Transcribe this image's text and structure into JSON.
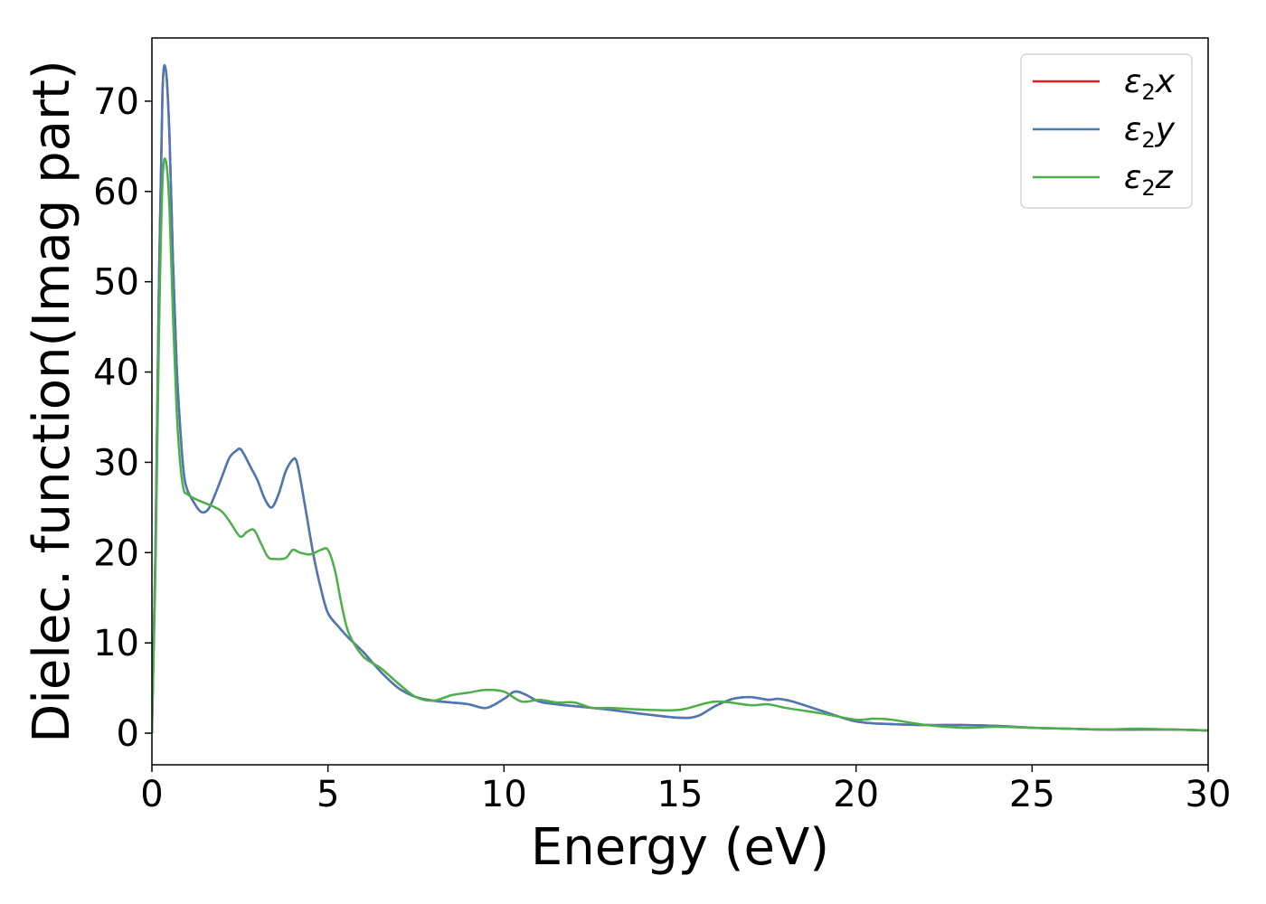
{
  "chart_data": {
    "type": "line",
    "xlabel": "Energy (eV)",
    "ylabel": "Dielec. function(Imag part)",
    "xlim": [
      0,
      30
    ],
    "ylim": [
      -3.5,
      77
    ],
    "xticks": [
      0,
      5,
      10,
      15,
      20,
      25,
      30
    ],
    "yticks": [
      0,
      10,
      20,
      30,
      40,
      50,
      60,
      70
    ],
    "grid": false,
    "legend": {
      "placement": "top-right"
    },
    "series": [
      {
        "name": "ε2x",
        "legend_base": "ε",
        "legend_sub": "2",
        "legend_var": "x",
        "color": "#e41a1c",
        "x": [
          0,
          0.1,
          0.2,
          0.3,
          0.4,
          0.5,
          0.6,
          0.7,
          0.8,
          0.9,
          1.0,
          1.2,
          1.4,
          1.6,
          1.8,
          2.0,
          2.2,
          2.4,
          2.5,
          2.6,
          2.8,
          3.0,
          3.2,
          3.4,
          3.6,
          3.8,
          4.0,
          4.1,
          4.2,
          4.4,
          4.6,
          4.8,
          5.0,
          5.3,
          5.6,
          6.0,
          6.5,
          7.0,
          7.5,
          8.0,
          8.5,
          9.0,
          9.5,
          10.0,
          10.3,
          10.6,
          11.0,
          11.5,
          12.0,
          13.0,
          14.0,
          15.0,
          15.5,
          16.0,
          16.5,
          17.0,
          17.5,
          17.8,
          18.2,
          19.0,
          20.0,
          21.0,
          22.0,
          23.0,
          24.0,
          25.0,
          26.0,
          27.0,
          28.0,
          29.0,
          30.0
        ],
        "y": [
          0,
          20,
          50,
          71,
          73.3,
          66,
          52,
          41,
          34,
          29,
          27,
          25.5,
          24.5,
          24.8,
          26.5,
          28.5,
          30.5,
          31.3,
          31.5,
          31.0,
          29.5,
          28,
          26,
          25,
          26.5,
          29,
          30.3,
          30.2,
          28.5,
          24,
          19.5,
          16,
          13.3,
          11.8,
          10.5,
          9,
          6.8,
          5,
          4,
          3.6,
          3.4,
          3.2,
          2.8,
          3.8,
          4.6,
          4.3,
          3.5,
          3.2,
          3.0,
          2.6,
          2.1,
          1.7,
          1.9,
          3.0,
          3.8,
          4.0,
          3.7,
          3.8,
          3.5,
          2.5,
          1.3,
          1.0,
          0.9,
          0.9,
          0.8,
          0.6,
          0.5,
          0.4,
          0.4,
          0.4,
          0.3
        ]
      },
      {
        "name": "ε2y",
        "legend_base": "ε",
        "legend_sub": "2",
        "legend_var": "y",
        "color": "#4a7ab5",
        "x": [
          0,
          0.1,
          0.2,
          0.3,
          0.4,
          0.5,
          0.6,
          0.7,
          0.8,
          0.9,
          1.0,
          1.2,
          1.4,
          1.6,
          1.8,
          2.0,
          2.2,
          2.4,
          2.5,
          2.6,
          2.8,
          3.0,
          3.2,
          3.4,
          3.6,
          3.8,
          4.0,
          4.1,
          4.2,
          4.4,
          4.6,
          4.8,
          5.0,
          5.3,
          5.6,
          6.0,
          6.5,
          7.0,
          7.5,
          8.0,
          8.5,
          9.0,
          9.5,
          10.0,
          10.3,
          10.6,
          11.0,
          11.5,
          12.0,
          13.0,
          14.0,
          15.0,
          15.5,
          16.0,
          16.5,
          17.0,
          17.5,
          17.8,
          18.2,
          19.0,
          20.0,
          21.0,
          22.0,
          23.0,
          24.0,
          25.0,
          26.0,
          27.0,
          28.0,
          29.0,
          30.0
        ],
        "y": [
          0,
          20,
          50,
          71,
          73.3,
          66,
          52,
          41,
          34,
          29,
          27,
          25.5,
          24.5,
          24.8,
          26.5,
          28.5,
          30.5,
          31.3,
          31.5,
          31.0,
          29.5,
          28,
          26,
          25,
          26.5,
          29,
          30.3,
          30.2,
          28.5,
          24,
          19.5,
          16,
          13.3,
          11.8,
          10.5,
          9,
          6.8,
          5,
          4,
          3.6,
          3.4,
          3.2,
          2.8,
          3.8,
          4.6,
          4.3,
          3.5,
          3.2,
          3.0,
          2.6,
          2.1,
          1.7,
          1.9,
          3.0,
          3.8,
          4.0,
          3.7,
          3.8,
          3.5,
          2.5,
          1.3,
          1.0,
          0.9,
          0.9,
          0.8,
          0.6,
          0.5,
          0.4,
          0.4,
          0.4,
          0.3
        ]
      },
      {
        "name": "ε2z",
        "legend_base": "ε",
        "legend_sub": "2",
        "legend_var": "z",
        "color": "#4daf4a",
        "x": [
          0,
          0.1,
          0.2,
          0.3,
          0.4,
          0.5,
          0.6,
          0.7,
          0.8,
          0.9,
          1.0,
          1.2,
          1.5,
          1.8,
          2.0,
          2.2,
          2.5,
          2.7,
          2.9,
          3.1,
          3.3,
          3.5,
          3.8,
          4.0,
          4.2,
          4.5,
          4.8,
          5.0,
          5.2,
          5.4,
          5.6,
          6.0,
          6.5,
          7.0,
          7.5,
          8.0,
          8.5,
          9.0,
          9.5,
          10.0,
          10.5,
          11.0,
          11.5,
          12.0,
          12.5,
          13.0,
          14.0,
          15.0,
          16.0,
          17.0,
          17.5,
          18.0,
          19.0,
          20.0,
          20.5,
          21.0,
          22.0,
          23.0,
          24.0,
          25.0,
          26.0,
          27.0,
          28.0,
          29.0,
          30.0
        ],
        "y": [
          0,
          18,
          44,
          61,
          63.3,
          58,
          46,
          36,
          30,
          27,
          26.5,
          26,
          25.5,
          25,
          24.5,
          23.5,
          21.8,
          22.3,
          22.5,
          21,
          19.5,
          19.3,
          19.4,
          20.3,
          20.0,
          19.8,
          20.3,
          20.3,
          18,
          14,
          11,
          8.5,
          7.2,
          5.5,
          4.0,
          3.6,
          4.2,
          4.5,
          4.8,
          4.6,
          3.5,
          3.7,
          3.4,
          3.4,
          2.8,
          2.8,
          2.6,
          2.6,
          3.5,
          3.1,
          3.2,
          2.8,
          2.2,
          1.5,
          1.6,
          1.5,
          0.9,
          0.6,
          0.7,
          0.6,
          0.5,
          0.4,
          0.5,
          0.4,
          0.3
        ]
      }
    ]
  }
}
